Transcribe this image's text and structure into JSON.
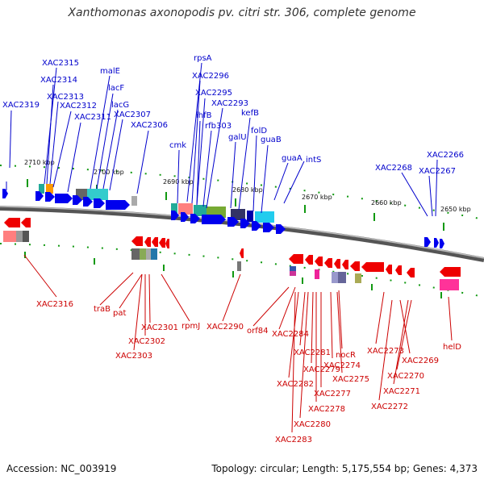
{
  "title": "Xanthomonas axonopodis pv. citri str. 306, complete genome",
  "footer": {
    "accession": "Accession: NC_003919",
    "summary": "Topology: circular; Length: 5,175,554 bp; Genes: 4,373"
  },
  "ticks": [
    "2710 kbp",
    "2700 kbp",
    "2690 kbp",
    "2680 kbp",
    "2670 kbp",
    "2660 kbp",
    "2650 kbp"
  ],
  "colors": {
    "forward": "#0000ee",
    "reverse": "#ee0000",
    "tick": "#119911",
    "backbone": "#666666"
  },
  "top_labels": [
    "XAC2315",
    "XAC2314",
    "XAC2313",
    "XAC2312",
    "XAC2311",
    "XAC2319",
    "malE",
    "lacF",
    "lacG",
    "XAC2307",
    "XAC2306",
    "rpsA",
    "XAC2296",
    "XAC2295",
    "XAC2293",
    "ihfB",
    "rfb303",
    "kefB",
    "folD",
    "galU",
    "guaB",
    "cmk",
    "guaA",
    "intS",
    "XAC2266",
    "XAC2268",
    "XAC2267"
  ],
  "bottom_labels": [
    "XAC2316",
    "traB",
    "pat",
    "XAC2301",
    "XAC2302",
    "XAC2303",
    "rpmJ",
    "XAC2290",
    "orf84",
    "XAC2284",
    "XAC2281",
    "XAC2282",
    "XAC2283",
    "XAC2280",
    "XAC2279",
    "XAC2277",
    "XAC2278",
    "nocR",
    "XAC2274",
    "XAC2275",
    "XAC2273",
    "XAC2269",
    "XAC2270",
    "XAC2271",
    "XAC2272",
    "helD"
  ]
}
